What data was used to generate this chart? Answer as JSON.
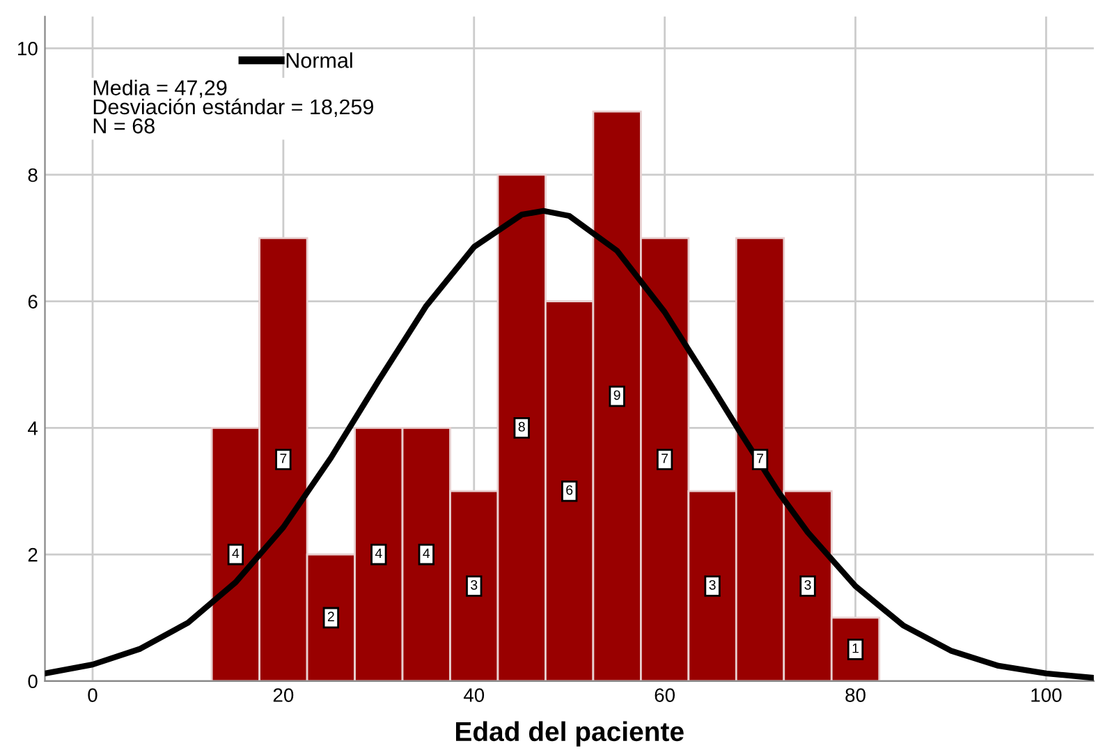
{
  "chart_data": {
    "type": "histogram",
    "xlabel": "Edad del paciente",
    "bins": [
      12.5,
      17.5,
      22.5,
      27.5,
      32.5,
      37.5,
      42.5,
      47.5,
      52.5,
      57.5,
      62.5,
      67.5,
      72.5,
      77.5,
      82.5
    ],
    "series": [
      {
        "color": "#990000",
        "values": [
          4,
          7,
          2,
          4,
          4,
          3,
          8,
          6,
          9,
          7,
          3,
          7,
          3,
          1
        ],
        "value_labels": [
          "4",
          "7",
          "2",
          "4",
          "4",
          "3",
          "8",
          "6",
          "9",
          "7",
          "3",
          "7",
          "3",
          "1"
        ]
      },
      {
        "type": "line",
        "name": "Normal",
        "color": "#000000",
        "x": [
          -5,
          0,
          5,
          10,
          15,
          20,
          25,
          30,
          35,
          40,
          45,
          47.29,
          50,
          55,
          60,
          65,
          68,
          72,
          75,
          80,
          85,
          90,
          95,
          100,
          105
        ],
        "values": [
          0.12,
          0.26,
          0.51,
          0.92,
          1.56,
          2.43,
          3.53,
          4.75,
          5.93,
          6.86,
          7.37,
          7.43,
          7.35,
          6.8,
          5.83,
          4.64,
          3.91,
          2.97,
          2.35,
          1.5,
          0.88,
          0.48,
          0.24,
          0.12,
          0.05
        ]
      }
    ],
    "annotations": [
      "Media = 47,29\nDesviación estándar = 18,259\nN = 68"
    ],
    "xlim": [
      -5,
      105
    ],
    "ylim": [
      0,
      10.5
    ],
    "xticks": [
      0,
      20,
      40,
      60,
      80,
      100
    ],
    "yticks": [
      0,
      2,
      4,
      6,
      8,
      10
    ],
    "grid": true,
    "legend": "top left"
  }
}
